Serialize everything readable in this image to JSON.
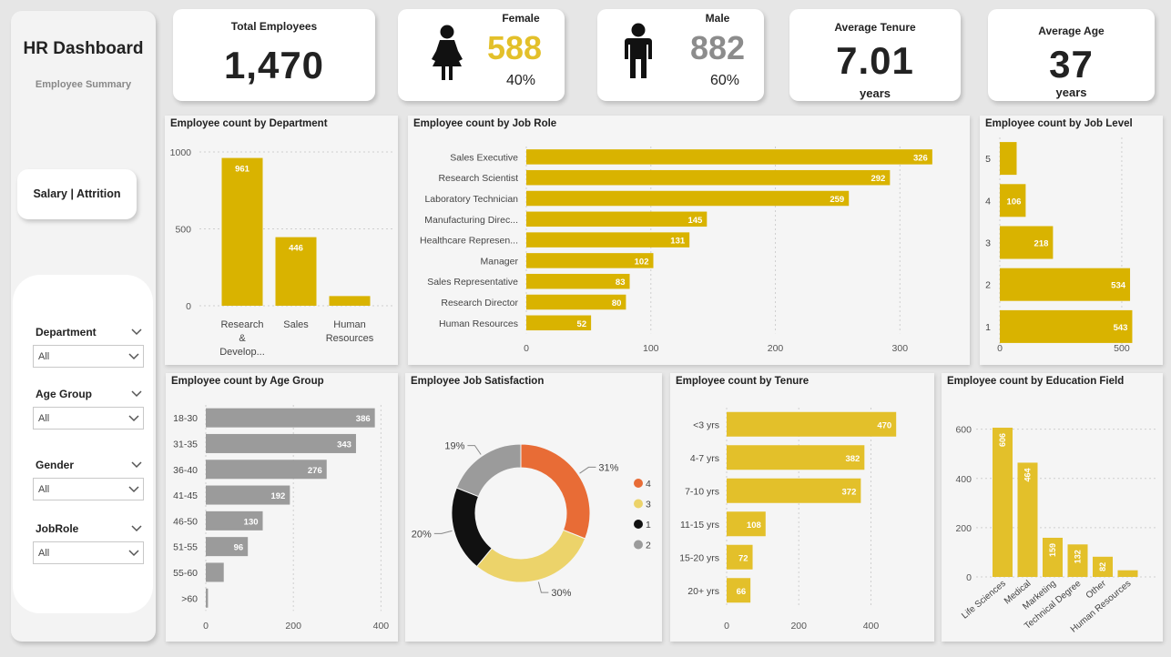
{
  "sidebar": {
    "title": "HR Dashboard",
    "subtitle": "Employee Summary",
    "nav_button": "Salary | Attrition",
    "filters": [
      {
        "label": "Department",
        "value": "All"
      },
      {
        "label": "Age Group",
        "value": "All"
      },
      {
        "label": "Gender",
        "value": "All"
      },
      {
        "label": "JobRole",
        "value": "All"
      }
    ]
  },
  "kpis": {
    "total": {
      "label": "Total Employees",
      "value": "1,470"
    },
    "female": {
      "label": "Female",
      "value": "588",
      "pct": "40%"
    },
    "male": {
      "label": "Male",
      "value": "882",
      "pct": "60%"
    },
    "tenure": {
      "label": "Average Tenure",
      "value": "7.01",
      "unit": "years"
    },
    "age": {
      "label": "Average Age",
      "value": "37",
      "unit": "years"
    }
  },
  "colors": {
    "gold": "#d9b300",
    "gold_light": "#e3c02a",
    "gray": "#9b9b9b",
    "orange": "#e86c36",
    "yellow_pale": "#ecd36a",
    "black": "#111111",
    "female_value": "#e3c02a",
    "male_value": "#8c8c8c"
  },
  "icons": {
    "female": "female-person-icon",
    "male": "male-person-icon",
    "dropdown": "chevron-down-icon"
  },
  "chart_data": [
    {
      "id": "dept",
      "type": "bar",
      "orientation": "vertical",
      "title": "Employee count by Department",
      "categories": [
        "Research & Develop...",
        "Sales",
        "Human Resources"
      ],
      "category_lines": [
        [
          "Research",
          "&",
          "Develop..."
        ],
        [
          "Sales"
        ],
        [
          "Human",
          "Resources"
        ]
      ],
      "values": [
        961,
        446,
        63
      ],
      "data_labels": [
        "961",
        "446",
        ""
      ],
      "yticks": [
        0,
        500,
        1000
      ],
      "ylim": [
        0,
        1000
      ]
    },
    {
      "id": "jobrole",
      "type": "bar",
      "orientation": "horizontal",
      "title": "Employee count by Job Role",
      "categories": [
        "Sales Executive",
        "Research Scientist",
        "Laboratory Technician",
        "Manufacturing Direc...",
        "Healthcare Represen...",
        "Manager",
        "Sales Representative",
        "Research Director",
        "Human Resources"
      ],
      "values": [
        326,
        292,
        259,
        145,
        131,
        102,
        83,
        80,
        52
      ],
      "xticks": [
        0,
        100,
        200,
        300
      ],
      "xlim": [
        0,
        340
      ]
    },
    {
      "id": "joblevel",
      "type": "bar",
      "orientation": "horizontal",
      "title": "Employee count by Job Level",
      "categories": [
        "5",
        "4",
        "3",
        "2",
        "1"
      ],
      "values": [
        69,
        106,
        218,
        534,
        543
      ],
      "data_labels": [
        "",
        "106",
        "218",
        "534",
        "543"
      ],
      "xticks": [
        0,
        500
      ],
      "xlim": [
        0,
        560
      ]
    },
    {
      "id": "agegroup",
      "type": "bar",
      "orientation": "horizontal",
      "title": "Employee count by Age Group",
      "categories": [
        "18-30",
        "31-35",
        "36-40",
        "41-45",
        "46-50",
        "51-55",
        "55-60",
        ">60"
      ],
      "values": [
        386,
        343,
        276,
        192,
        130,
        96,
        41,
        5
      ],
      "data_labels": [
        "386",
        "343",
        "276",
        "192",
        "130",
        "96",
        "",
        ""
      ],
      "xticks": [
        0,
        200,
        400
      ],
      "xlim": [
        0,
        420
      ]
    },
    {
      "id": "satisfaction",
      "type": "pie",
      "donut": true,
      "title": "Employee Job Satisfaction",
      "categories": [
        "4",
        "3",
        "1",
        "2"
      ],
      "values": [
        31,
        30,
        20,
        19
      ],
      "data_labels": [
        "31%",
        "30%",
        "20%",
        "19%"
      ],
      "legend_position": "right"
    },
    {
      "id": "tenure",
      "type": "bar",
      "orientation": "horizontal",
      "title": "Employee count by Tenure",
      "categories": [
        "<3 yrs",
        "4-7 yrs",
        "7-10 yrs",
        "11-15 yrs",
        "15-20 yrs",
        "20+ yrs"
      ],
      "values": [
        470,
        382,
        372,
        108,
        72,
        66
      ],
      "xticks": [
        0,
        200,
        400
      ],
      "xlim": [
        0,
        520
      ]
    },
    {
      "id": "education",
      "type": "bar",
      "orientation": "vertical",
      "title": "Employee count by Education Field",
      "categories": [
        "Life Sciences",
        "Medical",
        "Marketing",
        "Technical Degree",
        "Other",
        "Human Resources"
      ],
      "values": [
        606,
        464,
        159,
        132,
        82,
        27
      ],
      "data_labels": [
        "606",
        "464",
        "159",
        "132",
        "82",
        ""
      ],
      "yticks": [
        0,
        200,
        400,
        600
      ],
      "ylim": [
        0,
        680
      ]
    }
  ]
}
